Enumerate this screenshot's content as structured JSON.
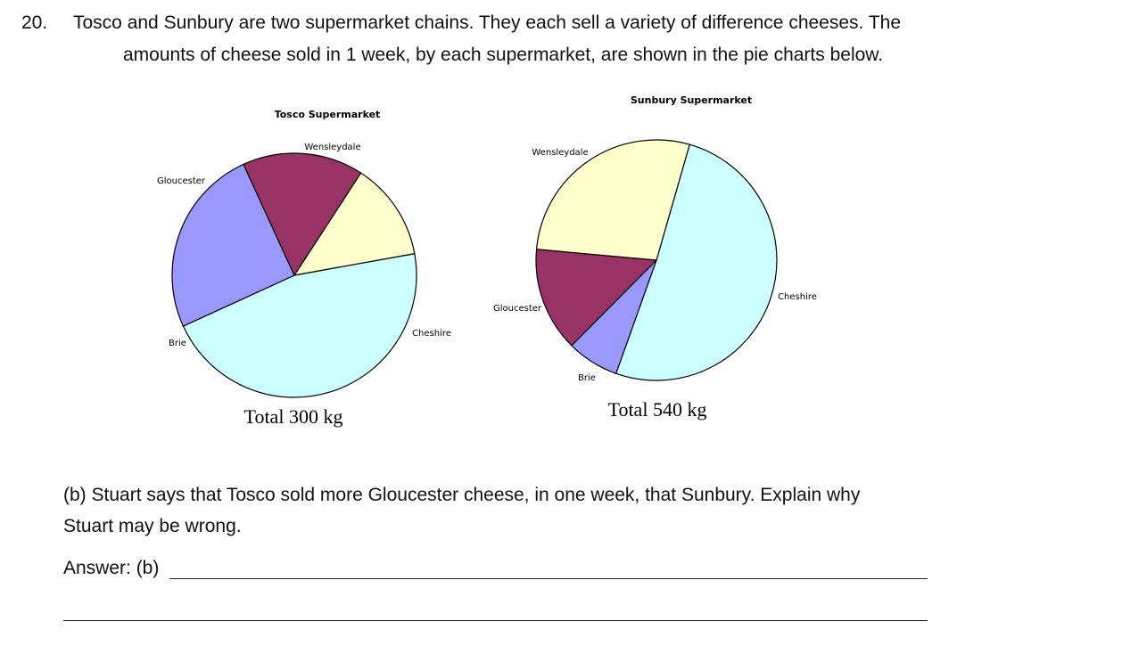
{
  "question": {
    "number": "20.",
    "line1": "Tosco and Sunbury are two supermarket chains. They each sell a variety of difference cheeses. The",
    "line2": "amounts of cheese sold in 1 week, by each supermarket, are shown in the pie charts below."
  },
  "part_b": {
    "line1": "(b) Stuart says that Tosco sold more Gloucester cheese, in one week, that Sunbury. Explain why",
    "line2": "Stuart may be wrong.",
    "answer_label": "Answer: (b)"
  },
  "colors": {
    "Wensleydale": "#FFFFCC",
    "Cheshire": "#CCFFFF",
    "Brie": "#9999FF",
    "Gloucester": "#993366",
    "outline": "#000000"
  },
  "chart_data": [
    {
      "type": "pie",
      "title": "Tosco Supermarket",
      "caption": "Total 300 kg",
      "slices": [
        {
          "label": "Wensleydale",
          "value": 13
        },
        {
          "label": "Cheshire",
          "value": 46
        },
        {
          "label": "Brie",
          "value": 25
        },
        {
          "label": "Gloucester",
          "value": 16
        }
      ]
    },
    {
      "type": "pie",
      "title": "Sunbury Supermarket",
      "caption": "Total 540 kg",
      "slices": [
        {
          "label": "Cheshire",
          "value": 51
        },
        {
          "label": "Brie",
          "value": 7
        },
        {
          "label": "Gloucester",
          "value": 14
        },
        {
          "label": "Wensleydale",
          "value": 28
        }
      ]
    }
  ]
}
